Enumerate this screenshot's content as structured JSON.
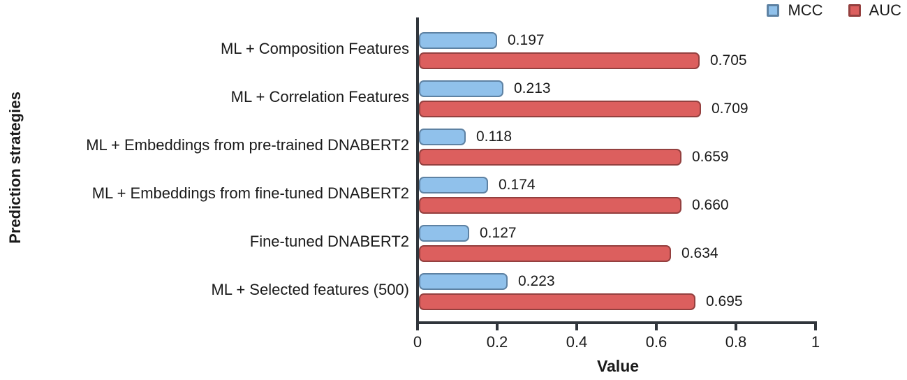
{
  "figure": {
    "background": "#ffffff",
    "axis_color": "#30353b",
    "text_color": "#1a1a1a"
  },
  "chart_data": {
    "type": "bar",
    "orientation": "horizontal",
    "xlabel": "Value",
    "ylabel": "Prediction strategies",
    "xlim": [
      0,
      1
    ],
    "xticks": [
      "0",
      "0.2",
      "0.4",
      "0.6",
      "0.8",
      "1"
    ],
    "grid": false,
    "legend_position": "top-right",
    "categories": [
      "ML + Composition Features",
      "ML + Correlation Features",
      "ML + Embeddings from pre-trained DNABERT2",
      "ML + Embeddings from fine-tuned DNABERT2",
      "Fine-tuned DNABERT2",
      "ML + Selected features (500)"
    ],
    "series": [
      {
        "name": "MCC",
        "fill": "#90C1EB",
        "border": "#5E82A3",
        "values": [
          0.197,
          0.213,
          0.118,
          0.174,
          0.127,
          0.223
        ],
        "value_labels": [
          "0.197",
          "0.213",
          "0.118",
          "0.174",
          "0.127",
          "0.223"
        ]
      },
      {
        "name": "AUC",
        "fill": "#DC5F5E",
        "border": "#94403F",
        "values": [
          0.705,
          0.709,
          0.659,
          0.66,
          0.634,
          0.695
        ],
        "value_labels": [
          "0.705",
          "0.709",
          "0.659",
          "0.660",
          "0.634",
          "0.695"
        ]
      }
    ]
  }
}
